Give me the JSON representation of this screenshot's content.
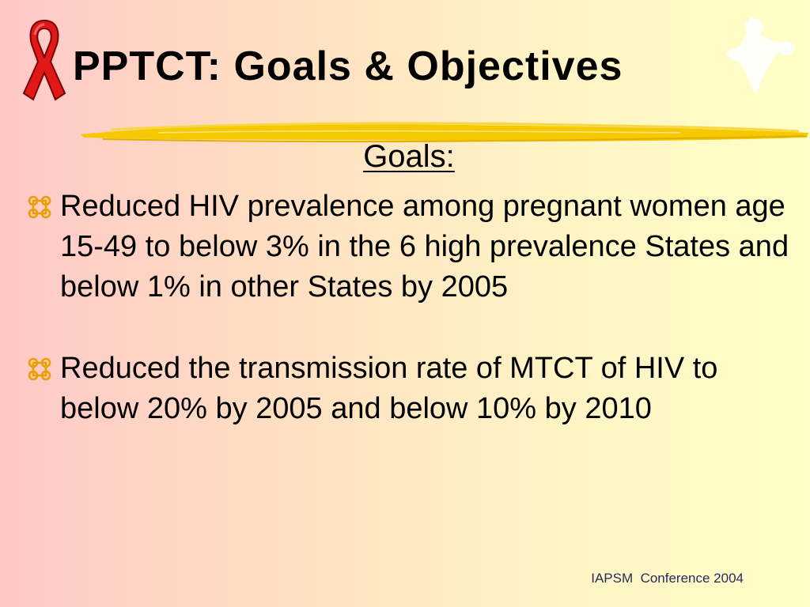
{
  "slide": {
    "title": "PPTCT: Goals & Objectives",
    "heading": "Goals:",
    "bullets": [
      {
        "text": "Reduced HIV prevalence among pregnant women age 15-49 to below 3% in the 6 high prevalence States and below 1% in other States by 2005"
      },
      {
        "text": "Reduced the transmission rate of MTCT of HIV to below 20% by 2005 and below 10% by 2010"
      }
    ],
    "footer": "IAPSM  Conference 2004"
  },
  "icons": {
    "ribbon": "red-ribbon-icon",
    "map": "india-map-icon",
    "bullet": "command-key-bullet-icon"
  },
  "colors": {
    "ribbon": "#e01818",
    "brush": "#f5c800",
    "bullet": "#e8a000",
    "background_left": "#ffc8c8",
    "background_right": "#ffffc8"
  }
}
